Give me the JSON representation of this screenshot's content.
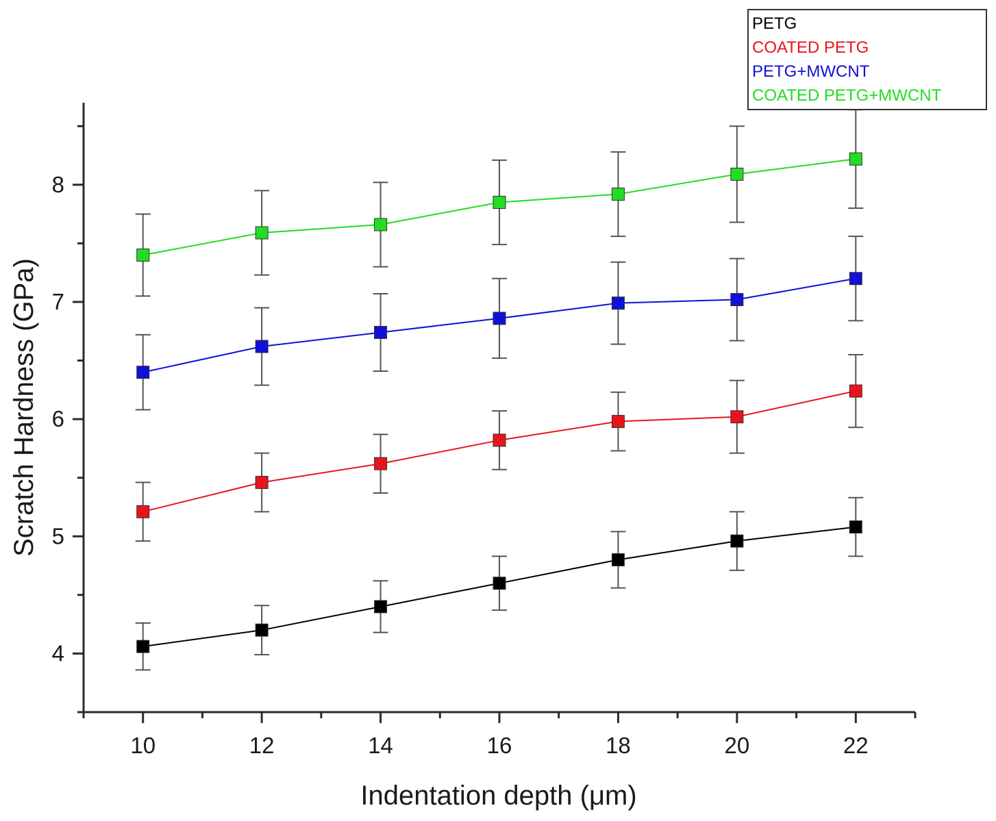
{
  "chart_data": {
    "type": "line",
    "xlabel": "Indentation depth (μm)",
    "ylabel": "Scratch Hardness (GPa)",
    "x": [
      10,
      12,
      14,
      16,
      18,
      20,
      22
    ],
    "xlim": [
      9,
      23
    ],
    "ylim": [
      3.5,
      8.7
    ],
    "x_ticks": [
      10,
      12,
      14,
      16,
      18,
      20,
      22
    ],
    "y_ticks": [
      4,
      5,
      6,
      7,
      8
    ],
    "legend_position": "top-right",
    "grid": false,
    "series": [
      {
        "name": "PETG",
        "color": "#000000",
        "values": [
          4.06,
          4.2,
          4.4,
          4.6,
          4.8,
          4.96,
          5.08
        ],
        "errors": [
          0.2,
          0.21,
          0.22,
          0.23,
          0.24,
          0.25,
          0.25
        ]
      },
      {
        "name": "COATED PETG",
        "color": "#e8141c",
        "values": [
          5.21,
          5.46,
          5.62,
          5.82,
          5.98,
          6.02,
          6.24
        ],
        "errors": [
          0.25,
          0.25,
          0.25,
          0.25,
          0.25,
          0.31,
          0.31
        ]
      },
      {
        "name": "PETG+MWCNT",
        "color": "#1010d8",
        "values": [
          6.4,
          6.62,
          6.74,
          6.86,
          6.99,
          7.02,
          7.2
        ],
        "errors": [
          0.32,
          0.33,
          0.33,
          0.34,
          0.35,
          0.35,
          0.36
        ]
      },
      {
        "name": "COATED PETG+MWCNT",
        "color": "#22dd22",
        "values": [
          7.4,
          7.59,
          7.66,
          7.85,
          7.92,
          8.09,
          8.22
        ],
        "errors": [
          0.35,
          0.36,
          0.36,
          0.36,
          0.36,
          0.41,
          0.42
        ]
      }
    ]
  }
}
